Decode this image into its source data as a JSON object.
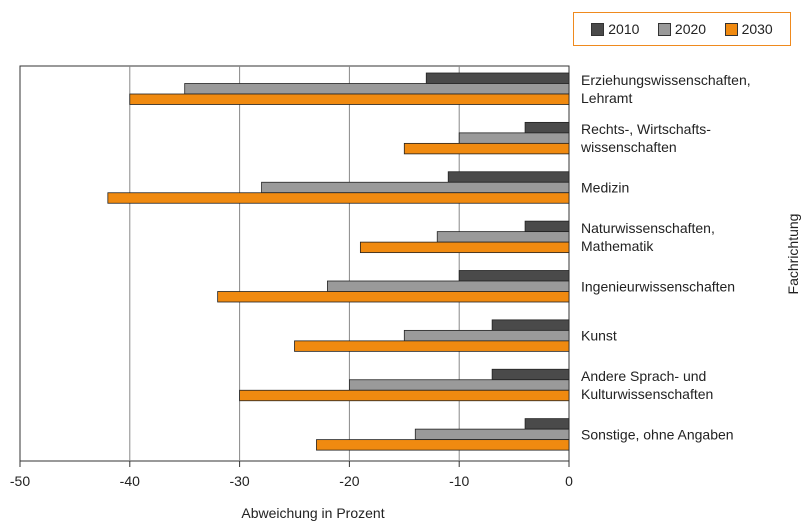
{
  "chart_data": {
    "type": "bar",
    "orientation": "horizontal",
    "categories": [
      [
        "Erziehungswissenschaften,",
        "Lehramt"
      ],
      [
        "Rechts-, Wirtschafts-",
        "wissenschaften"
      ],
      [
        "Medizin"
      ],
      [
        "Naturwissenschaften,",
        "Mathematik"
      ],
      [
        "Ingenieurwissenschaften"
      ],
      [
        "Kunst"
      ],
      [
        "Andere Sprach- und",
        "Kulturwissenschaften"
      ],
      [
        "Sonstige, ohne Angaben"
      ]
    ],
    "series": [
      {
        "name": "2010",
        "color": "#4a4a4a",
        "values": [
          -13,
          -4,
          -11,
          -4,
          -10,
          -7,
          -7,
          -4
        ]
      },
      {
        "name": "2020",
        "color": "#9a9a9a",
        "values": [
          -35,
          -10,
          -28,
          -12,
          -22,
          -15,
          -20,
          -14
        ]
      },
      {
        "name": "2030",
        "color": "#f08a10",
        "values": [
          -40,
          -15,
          -42,
          -19,
          -32,
          -25,
          -30,
          -23
        ]
      }
    ],
    "xlim": [
      -50,
      0
    ],
    "xticks": [
      "-50",
      "-40",
      "-30",
      "-20",
      "-10",
      "0"
    ],
    "xlabel": "Abweichung in Prozent",
    "ylabel": "Fachrichtung",
    "grid": "vertical",
    "legend_position": "top-right"
  }
}
